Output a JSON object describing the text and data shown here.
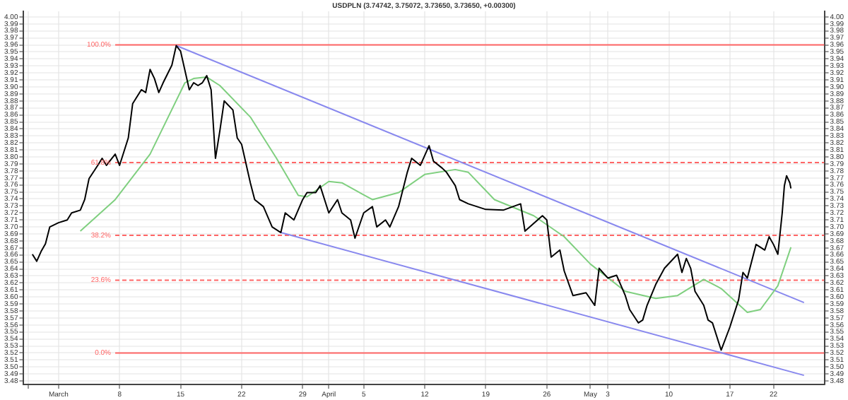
{
  "chart_data": {
    "type": "line",
    "title": "USDPLN (3.74742, 3.75072, 3.73650, 3.73650, +0.00300)",
    "xlim": [
      "--02-25T00:00",
      "--05-27T20:00"
    ],
    "xticks": [
      {
        "value": "--02-25T12:00",
        "label": null
      },
      {
        "value": "--03-01",
        "label": "March"
      },
      {
        "value": "--03-08",
        "label": "8"
      },
      {
        "value": "--03-15",
        "label": "15"
      },
      {
        "value": "--03-22",
        "label": "22"
      },
      {
        "value": "--03-29",
        "label": "29"
      },
      {
        "value": "--04-01",
        "label": "April"
      },
      {
        "value": "--04-05",
        "label": "5"
      },
      {
        "value": "--04-12",
        "label": "12"
      },
      {
        "value": "--04-19",
        "label": "19"
      },
      {
        "value": "--04-26",
        "label": "26"
      },
      {
        "value": "--05-01",
        "label": "May"
      },
      {
        "value": "--05-03",
        "label": "3"
      },
      {
        "value": "--05-10",
        "label": "10"
      },
      {
        "value": "--05-17",
        "label": "17"
      },
      {
        "value": "--05-22",
        "label": "22"
      }
    ],
    "ylim": [
      3.475,
      4.008
    ],
    "yticks": [
      3.48,
      3.49,
      {
        "value": 3.5,
        "label": "3.50"
      },
      3.51,
      3.52,
      3.53,
      3.54,
      3.55,
      3.56,
      3.57,
      3.58,
      3.59,
      {
        "value": 3.6,
        "label": "3.60"
      },
      3.61,
      3.62,
      3.63,
      3.64,
      3.65,
      3.66,
      3.67,
      3.68,
      3.69,
      {
        "value": 3.7,
        "label": "3.70"
      },
      3.71,
      3.72,
      3.73,
      3.74,
      3.75,
      3.76,
      3.77,
      3.78,
      3.79,
      {
        "value": 3.8,
        "label": "3.80"
      },
      3.81,
      3.82,
      3.83,
      3.84,
      3.85,
      3.86,
      3.87,
      3.88,
      3.89,
      {
        "value": 3.9,
        "label": "3.90"
      },
      3.91,
      3.92,
      3.93,
      3.94,
      3.95,
      3.96,
      3.97,
      3.98,
      3.99,
      {
        "value": 4,
        "label": "4.00"
      }
    ],
    "y2lim": [
      3.475,
      4.008
    ],
    "y2ticks": [
      3.48,
      3.49,
      {
        "value": 3.5,
        "label": "3.50"
      },
      3.51,
      3.52,
      3.53,
      3.54,
      3.55,
      3.56,
      3.57,
      3.58,
      3.59,
      {
        "value": 3.6,
        "label": "3.60"
      },
      3.61,
      3.62,
      3.63,
      3.64,
      3.65,
      3.66,
      3.67,
      3.68,
      3.69,
      {
        "value": 3.7,
        "label": "3.70"
      },
      3.71,
      3.72,
      3.73,
      3.74,
      3.75,
      3.76,
      3.77,
      3.78,
      3.79,
      {
        "value": 3.8,
        "label": "3.80"
      },
      3.81,
      3.82,
      3.83,
      3.84,
      3.85,
      3.86,
      3.87,
      3.88,
      3.89,
      {
        "value": 3.9,
        "label": "3.90"
      },
      3.91,
      3.92,
      3.93,
      3.94,
      3.95,
      3.96,
      3.97,
      3.98,
      3.99,
      {
        "value": 4,
        "label": "4.00"
      }
    ],
    "grid": true,
    "legend": false,
    "marker": "none",
    "series": [
      {
        "color": "#000000",
        "x": [
          "--02-26T00:00",
          "--02-26T12:00",
          "--02-27T00:00",
          "--02-27T12:00",
          "--02-28T00:00",
          "--03-01T00:00",
          "--03-02T00:00",
          "--03-02T12:00",
          "--03-03T12:00",
          "--03-04T00:00",
          "--03-04T12:00",
          "--03-05T12:00",
          "--03-06T00:00",
          "--03-06T12:00",
          "--03-07T12:00",
          "--03-08T00:00",
          "--03-09T00:00",
          "--03-09T12:00",
          "--03-10T12:00",
          "--03-11T00:00",
          "--03-11T12:00",
          "--03-12T00:00",
          "--03-12T12:00",
          "--03-13T00:00",
          "--03-14T00:00",
          "--03-14T12:00",
          "--03-15T00:00",
          "--03-16T00:00",
          "--03-16T12:00",
          "--03-17T00:00",
          "--03-17T12:00",
          "--03-18T00:00",
          "--03-18T12:00",
          "--03-19T00:00",
          "--03-19T12:00",
          "--03-20T00:00",
          "--03-21T00:00",
          "--03-21T12:00",
          "--03-22T00:00",
          "--03-23T00:00",
          "--03-23T12:00",
          "--03-24T12:00",
          "--03-25T12:00",
          "--03-26T00:00",
          "--03-26T12:00",
          "--03-27T00:00",
          "--03-28T00:00",
          "--03-29T00:00",
          "--03-29T12:00",
          "--03-30T12:00",
          "--03-31T00:00",
          "--04-01T00:00",
          "--04-02T00:00",
          "--04-02T12:00",
          "--04-03T12:00",
          "--04-04T00:00",
          "--04-05T00:00",
          "--04-06T00:00",
          "--04-06T12:00",
          "--04-07T12:00",
          "--04-08T00:00",
          "--04-09T00:00",
          "--04-10T00:00",
          "--04-10T12:00",
          "--04-11T12:00",
          "--04-12T12:00",
          "--04-13T00:00",
          "--04-14T00:00",
          "--04-14T12:00",
          "--04-15T12:00",
          "--04-16T00:00",
          "--04-17T00:00",
          "--04-19T00:00",
          "--04-21T00:00",
          "--04-23T00:00",
          "--04-23T12:00",
          "--04-25T12:00",
          "--04-26T00:00",
          "--04-26T12:00",
          "--04-27T12:00",
          "--04-28T00:00",
          "--04-29T00:00",
          "--04-30T12:00",
          "--05-01T12:00",
          "--05-02T00:00",
          "--05-03T00:00",
          "--05-04T00:00",
          "--05-05T00:00",
          "--05-05T12:00",
          "--05-06T12:00",
          "--05-07T00:00",
          "--05-07T12:00",
          "--05-08T12:00",
          "--05-09T12:00",
          "--05-11T00:00",
          "--05-11T12:00",
          "--05-12T00:00",
          "--05-12T12:00",
          "--05-13T00:00",
          "--05-14T00:00",
          "--05-14T12:00",
          "--05-15T00:00",
          "--05-16T00:00",
          "--05-17T00:00",
          "--05-18T00:00",
          "--05-18T12:00",
          "--05-19T00:00",
          "--05-20T00:00",
          "--05-21T00:00",
          "--05-21T12:00",
          "--05-22T00:00",
          "--05-22T12:00",
          "--05-23T00:00",
          "--05-23T06:00",
          "--05-23T12:00",
          "--05-23T21:00",
          "--05-24T00:00"
        ],
        "values": [
          3.661,
          3.651,
          3.665,
          3.676,
          3.7,
          3.706,
          3.71,
          3.72,
          3.724,
          3.739,
          3.769,
          3.788,
          3.798,
          3.788,
          3.804,
          3.788,
          3.827,
          3.876,
          3.896,
          3.892,
          3.925,
          3.912,
          3.892,
          3.906,
          3.931,
          3.959,
          3.951,
          3.896,
          3.906,
          3.902,
          3.906,
          3.916,
          3.896,
          3.798,
          3.837,
          3.88,
          3.867,
          3.827,
          3.818,
          3.763,
          3.739,
          3.729,
          3.7,
          3.696,
          3.692,
          3.72,
          3.71,
          3.739,
          3.749,
          3.749,
          3.759,
          3.72,
          3.739,
          3.72,
          3.71,
          3.684,
          3.72,
          3.729,
          3.7,
          3.71,
          3.7,
          3.729,
          3.778,
          3.798,
          3.788,
          3.816,
          3.794,
          3.784,
          3.778,
          3.759,
          3.739,
          3.733,
          3.725,
          3.724,
          3.733,
          3.694,
          3.716,
          3.71,
          3.657,
          3.667,
          3.637,
          3.602,
          3.606,
          3.588,
          3.641,
          3.627,
          3.631,
          3.602,
          3.582,
          3.563,
          3.567,
          3.588,
          3.618,
          3.641,
          3.661,
          3.635,
          3.655,
          3.641,
          3.608,
          3.588,
          3.567,
          3.563,
          3.524,
          3.557,
          3.596,
          3.635,
          3.627,
          3.675,
          3.667,
          3.686,
          3.675,
          3.661,
          3.72,
          3.759,
          3.773,
          3.763,
          3.755
        ]
      },
      {
        "color": "#7fcf7f",
        "x": [
          "--03-03T12:00",
          "--03-07T12:00",
          "--03-11T12:00",
          "--03-15T12:00",
          "--03-16T12:00",
          "--03-18T00:00",
          "--03-19T12:00",
          "--03-23T00:00",
          "--03-26T00:00",
          "--03-28T12:00",
          "--03-29T12:00",
          "--04-01T00:00",
          "--04-02T12:00",
          "--04-06T00:00",
          "--04-09T00:00",
          "--04-12T00:00",
          "--04-15T12:00",
          "--04-17T00:00",
          "--04-20T00:00",
          "--04-24T12:00",
          "--04-28T00:00",
          "--05-01T00:00",
          "--05-05T00:00",
          "--05-08T12:00",
          "--05-11T00:00",
          "--05-14T00:00",
          "--05-16T00:00",
          "--05-19T00:00",
          "--05-20T12:00",
          "--05-22T12:00",
          "--05-24T00:00"
        ],
        "values": [
          3.694,
          3.739,
          3.804,
          3.906,
          3.912,
          3.914,
          3.902,
          3.857,
          3.798,
          3.745,
          3.743,
          3.765,
          3.763,
          3.739,
          3.749,
          3.775,
          3.782,
          3.778,
          3.739,
          3.716,
          3.686,
          3.647,
          3.608,
          3.598,
          3.602,
          3.625,
          3.612,
          3.578,
          3.582,
          3.616,
          3.671
        ]
      },
      {
        "color": "#8888ee",
        "x": [
          "--03-14T12:00",
          "--05-25T12:00"
        ],
        "values": [
          3.959,
          3.592
        ]
      },
      {
        "color": "#8888ee",
        "x": [
          "--03-26T12:00",
          "--05-25T12:00"
        ],
        "values": [
          3.692,
          3.488
        ]
      },
      {
        "name": "100.0%",
        "color": "#ff6666",
        "line_style": "solid",
        "x": [
          "--03-07T12:00",
          "--05-27T20:00"
        ],
        "values": [
          3.96,
          3.96
        ]
      },
      {
        "name": "61.8%",
        "color": "#ff6666",
        "line_style": "dashed",
        "x": [
          "--03-07T12:00",
          "--05-27T20:00"
        ],
        "values": [
          3.792,
          3.792
        ]
      },
      {
        "name": "38.2%",
        "color": "#ff6666",
        "line_style": "dashed",
        "x": [
          "--03-07T12:00",
          "--05-27T20:00"
        ],
        "values": [
          3.688,
          3.688
        ]
      },
      {
        "name": "23.6%",
        "color": "#ff6666",
        "line_style": "dashed",
        "x": [
          "--03-07T12:00",
          "--05-27T20:00"
        ],
        "values": [
          3.624,
          3.624
        ]
      },
      {
        "name": "0.0%",
        "color": "#ff6666",
        "line_style": "solid",
        "x": [
          "--03-07T12:00",
          "--05-27T20:00"
        ],
        "values": [
          3.52,
          3.52
        ]
      }
    ]
  }
}
